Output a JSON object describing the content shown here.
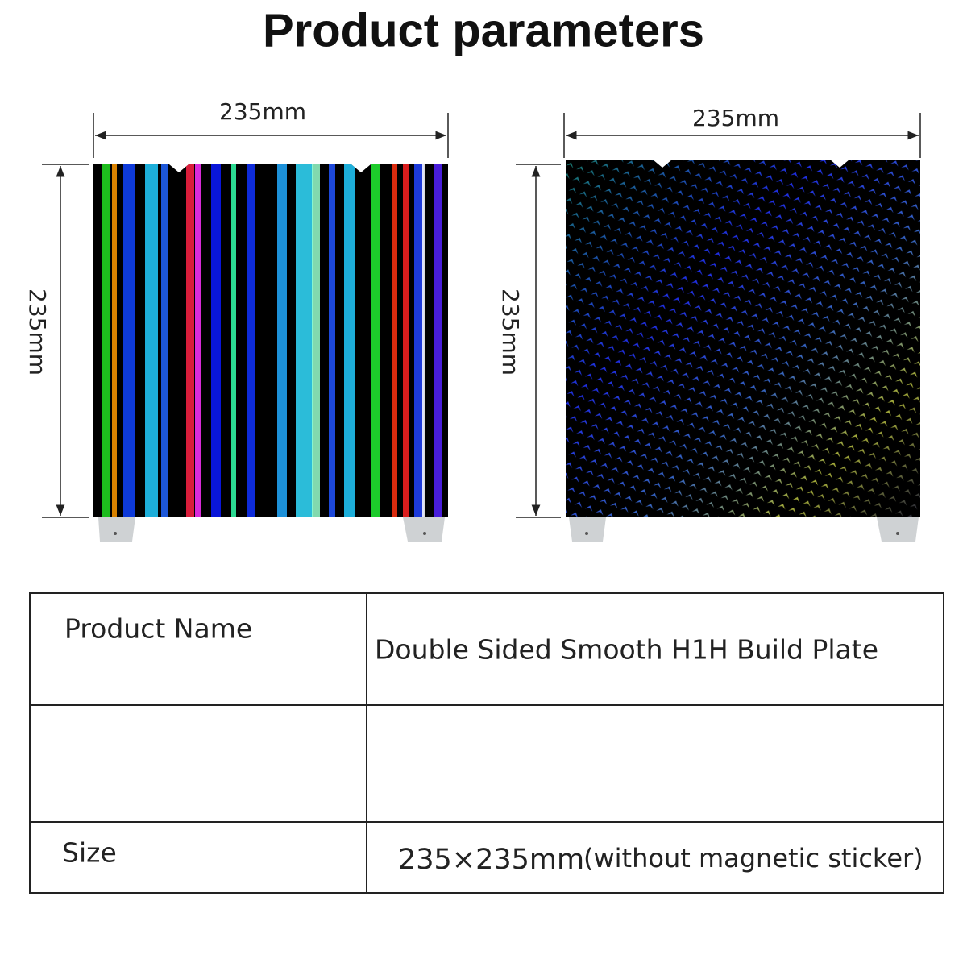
{
  "title": "Product parameters",
  "plates": [
    {
      "width_label": "235mm",
      "height_label": "235mm"
    },
    {
      "width_label": "235mm",
      "height_label": "235mm"
    }
  ],
  "table": {
    "rows": [
      {
        "label": "Product Name",
        "value": "Double Sided Smooth H1H Build Plate"
      },
      {
        "label": "Size",
        "value": "235×235mm",
        "note": "(without magnetic sticker)"
      }
    ]
  }
}
